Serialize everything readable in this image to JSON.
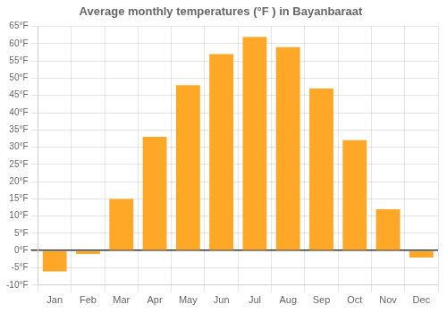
{
  "chart_data": {
    "type": "bar",
    "title": "Average monthly temperatures (°F ) in Bayanbaraat",
    "categories": [
      "Jan",
      "Feb",
      "Mar",
      "Apr",
      "May",
      "Jun",
      "Jul",
      "Aug",
      "Sep",
      "Oct",
      "Nov",
      "Dec"
    ],
    "values": [
      -6,
      -1,
      15,
      33,
      48,
      57,
      62,
      59,
      47,
      32,
      12,
      -2
    ],
    "color": "#FFA726",
    "ylim": [
      -10,
      65
    ],
    "yticks": [
      {
        "value": -10,
        "label": "-10°F"
      },
      {
        "value": -5,
        "label": "-5°F"
      },
      {
        "value": 0,
        "label": "0°F"
      },
      {
        "value": 5,
        "label": "5°F"
      },
      {
        "value": 10,
        "label": "10°F"
      },
      {
        "value": 15,
        "label": "15°F"
      },
      {
        "value": 20,
        "label": "20°F"
      },
      {
        "value": 25,
        "label": "25°F"
      },
      {
        "value": 30,
        "label": "30°F"
      },
      {
        "value": 35,
        "label": "35°F"
      },
      {
        "value": 40,
        "label": "40°F"
      },
      {
        "value": 45,
        "label": "45°F"
      },
      {
        "value": 50,
        "label": "50°F"
      },
      {
        "value": 55,
        "label": "55°F"
      },
      {
        "value": 60,
        "label": "60°F"
      },
      {
        "value": 65,
        "label": "65°F"
      }
    ],
    "grid": true
  }
}
